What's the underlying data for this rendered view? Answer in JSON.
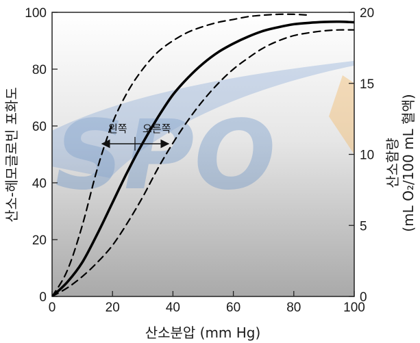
{
  "chart_data": {
    "type": "line",
    "xlabel": "산소분압 (mm Hg)",
    "ylabel": "산소-헤모글로빈 포화도",
    "y2label": "산소함량",
    "y2label_unit": "(mL O₂/100 mL 혈액)",
    "xlim": [
      0,
      100
    ],
    "ylim": [
      0,
      100
    ],
    "y2lim": [
      0,
      20
    ],
    "xticks": [
      "0",
      "20",
      "40",
      "60",
      "80",
      "100"
    ],
    "yticks": [
      "0",
      "20",
      "40",
      "60",
      "80",
      "100"
    ],
    "y2ticks": [
      "0",
      "5",
      "10",
      "15",
      "20"
    ],
    "watermark": "SPO",
    "grid": false,
    "background": "gradient gray",
    "series": [
      {
        "style": "solid",
        "x": [
          0,
          5,
          10,
          15,
          20,
          25,
          30,
          35,
          40,
          45,
          50,
          55,
          60,
          65,
          70,
          75,
          80,
          85,
          90,
          95,
          100
        ],
        "y": [
          0,
          5,
          12,
          22,
          33,
          44,
          54,
          63,
          71,
          77,
          82,
          86,
          89,
          91.5,
          93.5,
          94.8,
          95.8,
          96.3,
          96.6,
          96.7,
          96.5
        ]
      },
      {
        "style": "dashed",
        "x": [
          0,
          5,
          10,
          15,
          20,
          25,
          30,
          35,
          40,
          45,
          50,
          55,
          60,
          65,
          70,
          75,
          80,
          85
        ],
        "y": [
          0,
          9,
          25,
          45,
          61,
          72,
          80,
          86,
          90,
          93,
          95,
          96.5,
          97.5,
          98.5,
          99,
          99.3,
          99.3,
          99
        ]
      },
      {
        "style": "dashed",
        "x": [
          0,
          5,
          10,
          15,
          20,
          25,
          30,
          35,
          40,
          45,
          50,
          55,
          60,
          65,
          70,
          75,
          80,
          85,
          90,
          95,
          100
        ],
        "y": [
          0,
          3,
          7,
          12,
          18,
          26,
          35,
          45,
          54,
          62,
          69,
          75,
          80,
          84,
          87.5,
          90,
          91.8,
          92.8,
          93.5,
          93.8,
          93.8
        ]
      }
    ],
    "annotations": [
      {
        "text": "왼쪽",
        "arrow": "left"
      },
      {
        "text": "오른쪽",
        "arrow": "right"
      }
    ],
    "colors": {
      "curve": "#000000",
      "watermark": "#3b6fb0",
      "watermark_accent": "#f0a040",
      "bg_top": "#ffffff",
      "bg_bottom": "#a8a8a8"
    }
  }
}
